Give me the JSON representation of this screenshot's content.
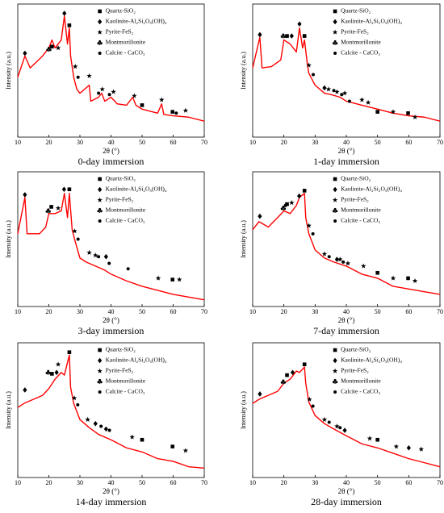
{
  "chart_data": [
    {
      "type": "line",
      "title": "0-day immersion",
      "xlabel": "2θ (°)",
      "ylabel": "Intensity (a.u.)",
      "xlim": [
        10,
        70
      ],
      "xticks": [
        10,
        20,
        30,
        40,
        50,
        60,
        70
      ],
      "ylim": [
        0,
        100
      ],
      "series": [
        {
          "color": "#ff0000",
          "x": [
            10,
            12.3,
            14,
            18,
            20,
            21,
            22,
            24,
            25,
            26,
            26.6,
            27,
            28,
            29,
            30,
            33,
            33.5,
            36,
            37,
            38,
            40,
            42,
            45,
            47,
            48,
            50,
            55,
            56.3,
            57,
            60,
            65,
            70
          ],
          "values": [
            45,
            61,
            52,
            61,
            67,
            73,
            67,
            73,
            91,
            70,
            82,
            61,
            45,
            36,
            33,
            39,
            27,
            30,
            33,
            27,
            30,
            25,
            24,
            30,
            24,
            21,
            18,
            25,
            17,
            16,
            15,
            12
          ]
        },
        {
          "name": "Quartz-SiO₂",
          "marker": "square",
          "color": "#000000",
          "x": [
            21,
            26.6,
            50,
            59.8
          ],
          "values": [
            68,
            84,
            24,
            19
          ]
        },
        {
          "name": "Kaolinite-Al₂Si₂O₅(OH)₄",
          "marker": "diamond",
          "color": "#000000",
          "x": [
            12.3,
            25
          ],
          "values": [
            63,
            93
          ]
        },
        {
          "name": "Pyrite-FeS₂",
          "marker": "star",
          "color": "#000000",
          "x": [
            23,
            28.5,
            33,
            37.2,
            40.8,
            47.5,
            56.3,
            64
          ],
          "values": [
            67,
            53,
            46,
            36,
            34,
            31,
            28,
            20
          ]
        },
        {
          "name": "Montmorillonite",
          "marker": "club",
          "color": "#000000",
          "x": [
            20
          ],
          "values": [
            66
          ]
        },
        {
          "name": "Calcite - CaCO₃",
          "marker": "circle",
          "color": "#000000",
          "x": [
            29.4,
            36,
            39.5,
            61
          ],
          "values": [
            45,
            33,
            32,
            18
          ]
        }
      ]
    },
    {
      "type": "line",
      "title": "1-day immersion",
      "xlabel": "2θ (°)",
      "ylabel": "Intensity (a.u.)",
      "xlim": [
        10,
        70
      ],
      "xticks": [
        10,
        20,
        30,
        40,
        50,
        60,
        70
      ],
      "ylim": [
        0,
        100
      ],
      "series": [
        {
          "color": "#ff0000",
          "x": [
            10,
            12.3,
            13,
            16,
            19,
            20,
            22,
            24,
            25,
            26,
            26.6,
            27.5,
            28,
            30,
            33,
            35,
            38,
            40,
            45,
            50,
            55,
            60,
            65,
            70
          ],
          "values": [
            52,
            75,
            52,
            53,
            58,
            73,
            70,
            64,
            82,
            67,
            73,
            55,
            48,
            39,
            33,
            32,
            30,
            27,
            24,
            21,
            18,
            16,
            15,
            12
          ]
        },
        {
          "name": "Quartz-SiO₂",
          "marker": "square",
          "color": "#000000",
          "x": [
            21,
            26.6,
            50,
            59.8
          ],
          "values": [
            76,
            76,
            19,
            18
          ]
        },
        {
          "name": "Kaolinite-Al₂Si₂O₅(OH)₄",
          "marker": "diamond",
          "color": "#000000",
          "x": [
            12.3,
            22.5,
            25,
            33
          ],
          "values": [
            77,
            76,
            85,
            37
          ]
        },
        {
          "name": "Pyrite-FeS₂",
          "marker": "star",
          "color": "#000000",
          "x": [
            28,
            34.3,
            37,
            39.5,
            45,
            47,
            55,
            62
          ],
          "values": [
            54,
            36,
            34,
            33,
            28,
            26,
            19,
            15
          ]
        },
        {
          "name": "Montmorillonite",
          "marker": "club",
          "color": "#000000",
          "x": [
            19.8
          ],
          "values": [
            76
          ]
        },
        {
          "name": "Calcite - CaCO₃",
          "marker": "circle",
          "color": "#000000",
          "x": [
            29.4,
            36,
            38.5,
            41
          ],
          "values": [
            47,
            35,
            32,
            27
          ]
        }
      ]
    },
    {
      "type": "line",
      "title": "3-day immersion",
      "xlabel": "2θ (°)",
      "ylabel": "Intensity (a.u.)",
      "xlim": [
        10,
        70
      ],
      "xticks": [
        10,
        20,
        30,
        40,
        50,
        60,
        70
      ],
      "ylim": [
        0,
        100
      ],
      "series": [
        {
          "color": "#ff0000",
          "x": [
            10,
            12.3,
            13,
            17,
            19,
            20,
            22,
            24,
            25,
            26,
            26.6,
            27.5,
            28.5,
            30,
            32,
            35,
            38,
            40,
            45,
            50,
            55,
            60,
            65,
            70
          ],
          "values": [
            54,
            81,
            54,
            54,
            59,
            69,
            69,
            71,
            84,
            66,
            84,
            57,
            48,
            36,
            33,
            30,
            27,
            24,
            19,
            15,
            12,
            9,
            7,
            5
          ]
        },
        {
          "name": "Quartz-SiO₂",
          "marker": "square",
          "color": "#000000",
          "x": [
            20.8,
            26.6,
            59.8
          ],
          "values": [
            74,
            87,
            20
          ]
        },
        {
          "name": "Kaolinite-Al₂Si₂O₅(OH)₄",
          "marker": "diamond",
          "color": "#000000",
          "x": [
            12.3,
            24.9,
            38.4
          ],
          "values": [
            83,
            87,
            37
          ]
        },
        {
          "name": "Pyrite-FeS₂",
          "marker": "star",
          "color": "#000000",
          "x": [
            23,
            28.3,
            33,
            35,
            55.2,
            62
          ],
          "values": [
            73,
            56,
            40,
            38,
            21,
            20
          ]
        },
        {
          "name": "Montmorillonite",
          "marker": "club",
          "color": "#000000",
          "x": [
            19.8
          ],
          "values": [
            71
          ]
        },
        {
          "name": "Calcite - CaCO₃",
          "marker": "circle",
          "color": "#000000",
          "x": [
            29.4,
            36,
            39.4,
            45.5
          ],
          "values": [
            50,
            37,
            32,
            28
          ]
        }
      ]
    },
    {
      "type": "line",
      "title": "7-day immersion",
      "xlabel": "2θ (°)",
      "ylabel": "Intensity (a.u.)",
      "xlim": [
        10,
        70
      ],
      "xticks": [
        10,
        20,
        30,
        40,
        50,
        60,
        70
      ],
      "ylim": [
        0,
        100
      ],
      "series": [
        {
          "color": "#ff0000",
          "x": [
            10,
            12,
            15,
            18,
            20,
            22,
            24,
            25,
            26.6,
            27,
            28,
            30,
            33,
            36,
            40,
            45,
            50,
            55,
            60,
            65,
            70
          ],
          "values": [
            57,
            63,
            59,
            66,
            71,
            69,
            75,
            81,
            84,
            66,
            54,
            42,
            36,
            33,
            30,
            24,
            21,
            15,
            13,
            11,
            9
          ]
        },
        {
          "name": "Quartz-SiO₂",
          "marker": "square",
          "color": "#000000",
          "x": [
            21,
            26.6,
            50,
            59.8
          ],
          "values": [
            76,
            86,
            25,
            21
          ]
        },
        {
          "name": "Kaolinite-Al₂Si₂O₅(OH)₄",
          "marker": "diamond",
          "color": "#000000",
          "x": [
            12.3,
            24.9,
            37
          ],
          "values": [
            67,
            82,
            35
          ]
        },
        {
          "name": "Pyrite-FeS₂",
          "marker": "star",
          "color": "#000000",
          "x": [
            22.5,
            28,
            33,
            38,
            40.5,
            45.5,
            55,
            62
          ],
          "values": [
            77,
            60,
            39,
            35,
            32,
            30,
            21,
            19
          ]
        },
        {
          "name": "Montmorillonite",
          "marker": "club",
          "color": "#000000",
          "x": [
            19.8
          ],
          "values": [
            73
          ]
        },
        {
          "name": "Calcite - CaCO₃",
          "marker": "circle",
          "color": "#000000",
          "x": [
            20.5,
            29.3,
            34.5,
            39
          ],
          "values": [
            75,
            54,
            37,
            33
          ]
        }
      ]
    },
    {
      "type": "line",
      "title": "14-day immersion",
      "xlabel": "2θ (°)",
      "ylabel": "Intensity (a.u.)",
      "xlim": [
        10,
        70
      ],
      "xticks": [
        10,
        20,
        30,
        40,
        50,
        60,
        70
      ],
      "ylim": [
        0,
        100
      ],
      "series": [
        {
          "color": "#ff0000",
          "x": [
            10,
            12,
            15,
            18,
            20,
            22,
            24,
            25,
            26.6,
            27,
            28,
            30,
            33,
            36,
            40,
            45,
            50,
            55,
            60,
            65,
            70
          ],
          "values": [
            52,
            55,
            58,
            61,
            66,
            73,
            78,
            76,
            91,
            67,
            55,
            43,
            37,
            32,
            28,
            22,
            19,
            14,
            12,
            8,
            7
          ]
        },
        {
          "name": "Quartz-SiO₂",
          "marker": "square",
          "color": "#000000",
          "x": [
            21,
            26.6,
            50,
            59.8
          ],
          "values": [
            77,
            93,
            28,
            23
          ]
        },
        {
          "name": "Kaolinite-Al₂Si₂O₅(OH)₄",
          "marker": "diamond",
          "color": "#000000",
          "x": [
            12.3,
            22.5,
            35,
            38.4
          ],
          "values": [
            65,
            78,
            40,
            36
          ]
        },
        {
          "name": "Pyrite-FeS₂",
          "marker": "star",
          "color": "#000000",
          "x": [
            23,
            28.2,
            32.5,
            46.8,
            64
          ],
          "values": [
            84,
            59,
            43,
            30,
            20
          ]
        },
        {
          "name": "Montmorillonite",
          "marker": "club",
          "color": "#000000",
          "x": [
            19.8
          ],
          "values": [
            78
          ]
        },
        {
          "name": "Calcite - CaCO₃",
          "marker": "circle",
          "color": "#000000",
          "x": [
            29.3,
            36.8,
            39.5
          ],
          "values": [
            54,
            38,
            35
          ]
        }
      ]
    },
    {
      "type": "line",
      "title": "28-day immersion",
      "xlabel": "2θ (°)",
      "ylabel": "Intensity (a.u.)",
      "xlim": [
        10,
        70
      ],
      "xticks": [
        10,
        20,
        30,
        40,
        50,
        60,
        70
      ],
      "ylim": [
        0,
        100
      ],
      "series": [
        {
          "color": "#ff0000",
          "x": [
            10,
            12,
            15,
            18,
            20,
            22,
            24,
            25,
            26.6,
            27,
            28,
            30,
            33,
            36,
            40,
            45,
            50,
            55,
            60,
            65,
            70
          ],
          "values": [
            55,
            58,
            61,
            64,
            70,
            73,
            79,
            78,
            82,
            70,
            56,
            46,
            40,
            36,
            31,
            25,
            22,
            18,
            14,
            11,
            8
          ]
        },
        {
          "name": "Quartz-SiO₂",
          "marker": "square",
          "color": "#000000",
          "x": [
            21,
            26.6,
            50
          ],
          "values": [
            76,
            84,
            28
          ]
        },
        {
          "name": "Kaolinite-Al₂Si₂O₅(OH)₄",
          "marker": "diamond",
          "color": "#000000",
          "x": [
            12.3,
            22.8,
            39.5,
            60
          ],
          "values": [
            62,
            78,
            35,
            22
          ]
        },
        {
          "name": "Pyrite-FeS₂",
          "marker": "star",
          "color": "#000000",
          "x": [
            28.2,
            33,
            37,
            47.5,
            56,
            64
          ],
          "values": [
            58,
            43,
            38,
            29,
            23,
            21
          ]
        },
        {
          "name": "Montmorillonite",
          "marker": "club",
          "color": "#000000",
          "x": [
            19.8
          ],
          "values": [
            71
          ]
        },
        {
          "name": "Calcite - CaCO₃",
          "marker": "circle",
          "color": "#000000",
          "x": [
            29.3,
            34.5,
            38
          ],
          "values": [
            53,
            41,
            37
          ]
        }
      ]
    }
  ]
}
